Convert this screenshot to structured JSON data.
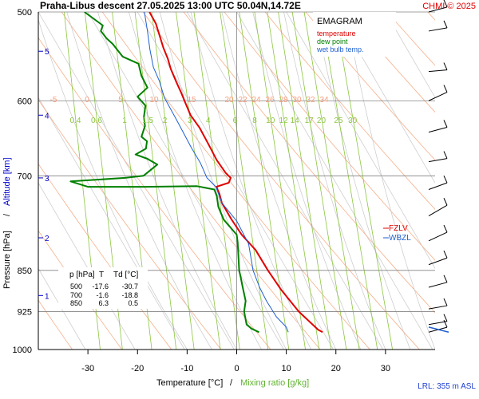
{
  "header": {
    "title": "Praha-Libus   descent   27.05.2025 13:00 UTC   50.04N,14.72E",
    "copyright": "CHMI © 2025"
  },
  "legend_box": {
    "title": "EMAGRAM",
    "items": [
      {
        "label": "temperature",
        "color": "#e00000"
      },
      {
        "label": "dew point",
        "color": "#008000"
      },
      {
        "label": "wet bulb temp.",
        "color": "#1f5fd0"
      }
    ]
  },
  "side_legend": [
    {
      "label": "FZLV",
      "color": "#e00000"
    },
    {
      "label": "WBZL",
      "color": "#1f5fd0"
    }
  ],
  "data_table": {
    "headers": [
      "p [hPa]",
      "T",
      "Td [°C]"
    ],
    "rows": [
      [
        "500",
        "-17.6",
        "-30.7"
      ],
      [
        "700",
        "-1.6",
        "-18.8"
      ],
      [
        "850",
        "6.3",
        "0.5"
      ]
    ]
  },
  "axes": {
    "y_title_a": "Pressure [hPa]",
    "y_title_sep": "/",
    "y_title_b": "Altitude [km]",
    "x_title_a": "Temperature [°C]",
    "x_title_sep": "/",
    "x_title_b": "Mixing ratio [g/kg]",
    "lrl": "LRL: 355 m ASL"
  },
  "colors": {
    "temperature": "#e00000",
    "dewpoint": "#008000",
    "wetbulb": "#1f5fd0",
    "isotherm": "#cfcfcf",
    "dry_adiabat": "#f5b08a",
    "mixing_ratio": "#8cc63f",
    "moist_adiabat": "#c8c8c8",
    "isobar": "#808080",
    "altitude_label": "#0000cc",
    "mixing_label": "#8cc63f",
    "adiabat_label": "#f5a080"
  },
  "chart_data": {
    "type": "line",
    "title": "EMAGRAM",
    "xlabel": "Temperature [°C]  /  Mixing ratio [g/kg]",
    "ylabel": "Pressure [hPa]  /  Altitude [km]",
    "xlim": [
      -40,
      40
    ],
    "ylim": [
      1000,
      500
    ],
    "y_scale": "log",
    "x_ticks": [
      -30,
      -20,
      -10,
      0,
      10,
      20,
      30
    ],
    "pressure_ticks": [
      500,
      600,
      700,
      850,
      925,
      1000
    ],
    "altitude_ticks": [
      {
        "label": "1",
        "p": 895
      },
      {
        "label": "2",
        "p": 795
      },
      {
        "label": "3",
        "p": 703
      },
      {
        "label": "4",
        "p": 618
      },
      {
        "label": "5",
        "p": 542
      }
    ],
    "mixing_ratio_values": [
      "0.4",
      "0.6",
      "1",
      "1.5",
      "2",
      "3",
      "4",
      "6",
      "8",
      "10",
      "12",
      "14",
      "17",
      "20",
      "25",
      "30"
    ],
    "mixing_ratio_label_p": 624,
    "dry_adiabat_values": [
      "-5",
      "0",
      "5",
      "10",
      "15",
      "20",
      "22",
      "24",
      "26",
      "28",
      "30",
      "32",
      "34"
    ],
    "dry_adiabat_label_p": 598,
    "series": [
      {
        "name": "temperature",
        "points": [
          [
            -17.6,
            500
          ],
          [
            -16.3,
            512
          ],
          [
            -15.6,
            524
          ],
          [
            -14.8,
            538
          ],
          [
            -13.9,
            550
          ],
          [
            -13.3,
            562
          ],
          [
            -12.2,
            577
          ],
          [
            -11.2,
            590
          ],
          [
            -10.4,
            602
          ],
          [
            -9.3,
            618
          ],
          [
            -7.5,
            634
          ],
          [
            -5.7,
            656
          ],
          [
            -4.0,
            678
          ],
          [
            -2.2,
            696
          ],
          [
            -1.2,
            703
          ],
          [
            -1.6,
            710
          ],
          [
            -4.1,
            716
          ],
          [
            -3.5,
            726
          ],
          [
            -3.0,
            740
          ],
          [
            -1.1,
            765
          ],
          [
            1.0,
            790
          ],
          [
            3.8,
            815
          ],
          [
            6.3,
            850
          ],
          [
            9.0,
            885
          ],
          [
            12.5,
            925
          ],
          [
            16.4,
            960
          ],
          [
            17.3,
            965
          ]
        ]
      },
      {
        "name": "dew point",
        "points": [
          [
            -30.7,
            500
          ],
          [
            -27.0,
            514
          ],
          [
            -27.4,
            520
          ],
          [
            -26.2,
            528
          ],
          [
            -25.0,
            534
          ],
          [
            -23.0,
            548
          ],
          [
            -19.8,
            556
          ],
          [
            -19.2,
            570
          ],
          [
            -18.0,
            584
          ],
          [
            -20.0,
            595
          ],
          [
            -18.4,
            606
          ],
          [
            -18.7,
            620
          ],
          [
            -18.5,
            632
          ],
          [
            -19.2,
            646
          ],
          [
            -18.1,
            652
          ],
          [
            -18.3,
            662
          ],
          [
            -20.4,
            670
          ],
          [
            -18.0,
            676
          ],
          [
            -16.0,
            684
          ],
          [
            -18.8,
            700
          ],
          [
            -22.5,
            703
          ],
          [
            -33.5,
            708
          ],
          [
            -30.0,
            716
          ],
          [
            -18.7,
            716
          ],
          [
            -8.0,
            715
          ],
          [
            -4.5,
            720
          ],
          [
            -4.0,
            730
          ],
          [
            -3.7,
            746
          ],
          [
            -2.6,
            766
          ],
          [
            0.0,
            790
          ],
          [
            0.2,
            802
          ],
          [
            0.5,
            850
          ],
          [
            0.8,
            862
          ],
          [
            1.2,
            880
          ],
          [
            1.8,
            905
          ],
          [
            1.5,
            925
          ],
          [
            2.0,
            950
          ],
          [
            3.0,
            958
          ],
          [
            4.5,
            965
          ]
        ]
      },
      {
        "name": "wet bulb temp.",
        "points": [
          [
            -18.6,
            500
          ],
          [
            -18.0,
            520
          ],
          [
            -17.5,
            540
          ],
          [
            -16.8,
            560
          ],
          [
            -15.6,
            576
          ],
          [
            -14.6,
            596
          ],
          [
            -12.3,
            622
          ],
          [
            -10.8,
            640
          ],
          [
            -9.2,
            660
          ],
          [
            -7.3,
            682
          ],
          [
            -6.0,
            703
          ],
          [
            -4.2,
            716
          ],
          [
            -3.0,
            740
          ],
          [
            0.0,
            768
          ],
          [
            2.4,
            805
          ],
          [
            3.3,
            850
          ],
          [
            4.6,
            880
          ],
          [
            6.0,
            905
          ],
          [
            8.0,
            935
          ],
          [
            10.0,
            955
          ],
          [
            10.4,
            965
          ]
        ]
      }
    ]
  }
}
